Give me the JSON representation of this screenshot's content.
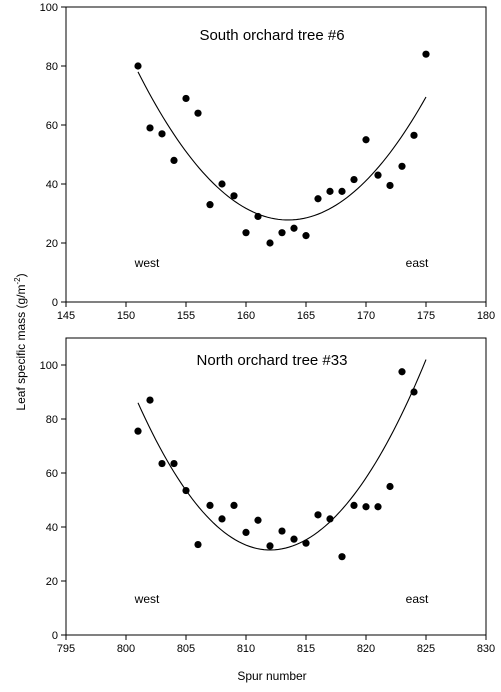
{
  "figure": {
    "ylabel": "Leaf specific mass (g/m",
    "ylabel_sup": "-2",
    "ylabel_close": ")",
    "xlabel": "Spur number"
  },
  "chart_data": [
    {
      "type": "scatter",
      "title": "South orchard tree #6",
      "xlabel": "Spur number",
      "ylabel": "Leaf specific mass (g/m-2)",
      "xlim": [
        145,
        180
      ],
      "ylim": [
        0,
        100
      ],
      "xticks": [
        145,
        150,
        155,
        160,
        165,
        170,
        175,
        180
      ],
      "yticks": [
        0,
        20,
        40,
        60,
        80,
        100
      ],
      "annotations": [
        "west",
        "east"
      ],
      "points": [
        [
          151,
          80
        ],
        [
          152,
          59
        ],
        [
          153,
          57
        ],
        [
          154,
          48
        ],
        [
          155,
          69
        ],
        [
          156,
          64
        ],
        [
          157,
          33
        ],
        [
          158,
          40
        ],
        [
          159,
          36
        ],
        [
          160,
          23.5
        ],
        [
          161,
          29
        ],
        [
          162,
          20
        ],
        [
          163,
          23.5
        ],
        [
          164,
          25
        ],
        [
          165,
          22.5
        ],
        [
          166,
          35
        ],
        [
          167,
          37.5
        ],
        [
          168,
          37.5
        ],
        [
          169,
          41.5
        ],
        [
          170,
          55
        ],
        [
          171,
          43
        ],
        [
          172,
          39.5
        ],
        [
          173,
          46
        ],
        [
          174,
          56.5
        ],
        [
          175,
          84
        ]
      ],
      "fit": {
        "x_start": 151,
        "x_end": 175,
        "y_start": 78,
        "x_vertex": 163.5,
        "y_vertex": 27.8,
        "y_end": 69.5
      }
    },
    {
      "type": "scatter",
      "title": "North orchard tree #33",
      "xlabel": "Spur number",
      "ylabel": "Leaf specific mass (g/m-2)",
      "xlim": [
        795,
        830
      ],
      "ylim": [
        0,
        110
      ],
      "xticks": [
        795,
        800,
        805,
        810,
        815,
        820,
        825,
        830
      ],
      "yticks": [
        0,
        20,
        40,
        60,
        80,
        100
      ],
      "annotations": [
        "west",
        "east"
      ],
      "points": [
        [
          801,
          75.5
        ],
        [
          802,
          87
        ],
        [
          803,
          63.5
        ],
        [
          804,
          63.5
        ],
        [
          805,
          53.5
        ],
        [
          806,
          33.5
        ],
        [
          807,
          48
        ],
        [
          808,
          43
        ],
        [
          809,
          48
        ],
        [
          810,
          38
        ],
        [
          811,
          42.5
        ],
        [
          812,
          33
        ],
        [
          813,
          38.5
        ],
        [
          814,
          35.5
        ],
        [
          815,
          34
        ],
        [
          816,
          44.5
        ],
        [
          817,
          43
        ],
        [
          818,
          29
        ],
        [
          819,
          48
        ],
        [
          820,
          47.5
        ],
        [
          821,
          47.5
        ],
        [
          822,
          55
        ],
        [
          823,
          97.5
        ],
        [
          824,
          90
        ]
      ],
      "fit": {
        "x_start": 801,
        "x_end": 825,
        "y_start": 86,
        "x_vertex": 812,
        "y_vertex": 31.5,
        "y_end": 102
      }
    }
  ]
}
